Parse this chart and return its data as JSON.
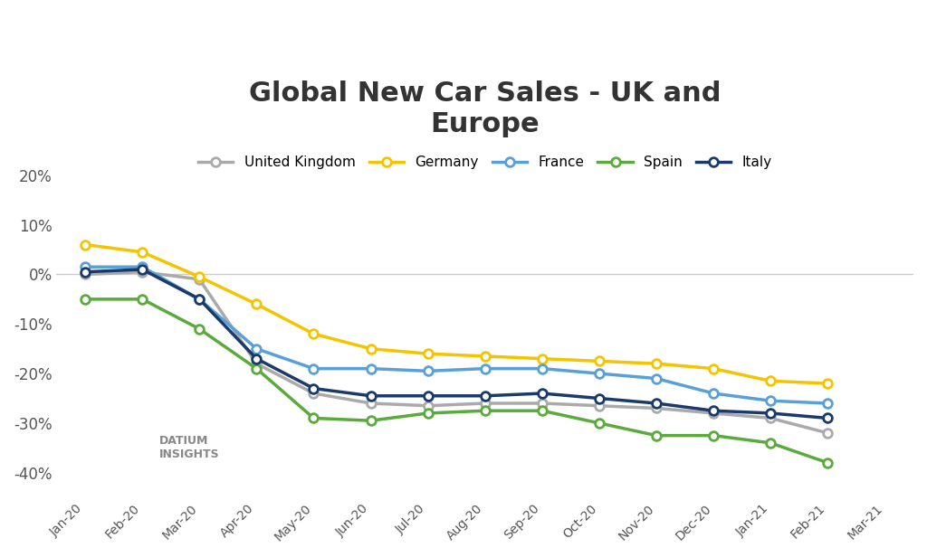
{
  "title": "Global New Car Sales - UK and\nEurope",
  "months": [
    "Jan-20",
    "Feb-20",
    "Mar-20",
    "Apr-20",
    "May-20",
    "Jun-20",
    "Jul-20",
    "Aug-20",
    "Sep-20",
    "Oct-20",
    "Nov-20",
    "Dec-20",
    "Jan-21",
    "Feb-21",
    "Mar-21"
  ],
  "series": {
    "United Kingdom": {
      "color": "#aaaaaa",
      "values": [
        0.0,
        0.5,
        -1.0,
        -18.0,
        -24.0,
        -26.0,
        -26.5,
        -26.0,
        -26.0,
        -26.5,
        -27.0,
        -28.0,
        -29.0,
        -32.0,
        null
      ]
    },
    "Germany": {
      "color": "#f5c400",
      "values": [
        6.0,
        4.5,
        -0.5,
        -6.0,
        -12.0,
        -15.0,
        -16.0,
        -16.5,
        -17.0,
        -17.5,
        -18.0,
        -19.0,
        -21.5,
        -22.0,
        null
      ]
    },
    "France": {
      "color": "#5aa0d8",
      "values": [
        1.5,
        1.5,
        -5.0,
        -15.0,
        -19.0,
        -19.0,
        -19.5,
        -19.0,
        -19.0,
        -20.0,
        -21.0,
        -24.0,
        -25.5,
        -26.0,
        null
      ]
    },
    "Spain": {
      "color": "#5aaa3c",
      "values": [
        -5.0,
        -5.0,
        -11.0,
        -19.0,
        -29.0,
        -29.5,
        -28.0,
        -27.5,
        -27.5,
        -30.0,
        -32.5,
        -32.5,
        -34.0,
        -38.0,
        null
      ]
    },
    "Italy": {
      "color": "#1a3a6b",
      "values": [
        0.5,
        1.0,
        -5.0,
        -17.0,
        -23.0,
        -24.5,
        -24.5,
        -24.5,
        -24.0,
        -25.0,
        -26.0,
        -27.5,
        -28.0,
        -29.0,
        null
      ]
    }
  },
  "ylim": [
    -45,
    25
  ],
  "yticks": [
    -40,
    -30,
    -20,
    -10,
    0,
    10,
    20
  ],
  "background_color": "#ffffff",
  "title_fontsize": 22,
  "legend_fontsize": 11
}
